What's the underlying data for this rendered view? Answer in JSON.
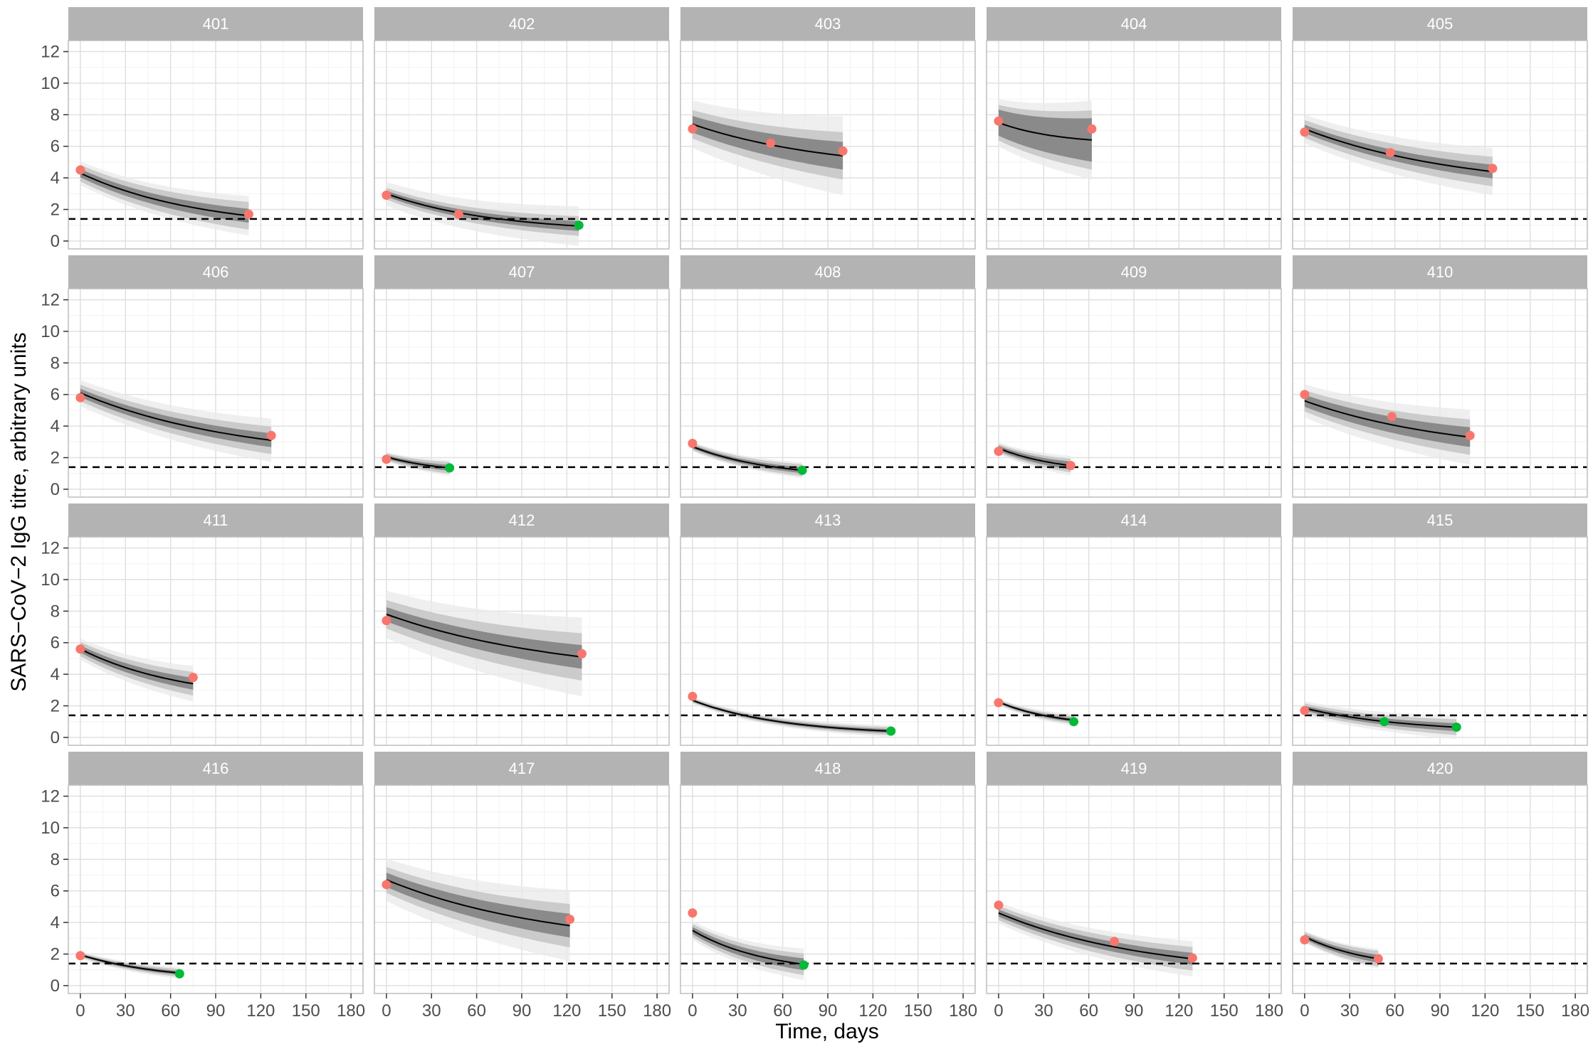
{
  "chart_data": {
    "type": "line",
    "facet_layout": "5 columns x 4 rows",
    "xlabel": "Time, days",
    "ylabel": "SARS−CoV−2 IgG titre, arbitrary units",
    "xlim": [
      -8,
      188
    ],
    "ylim": [
      -0.5,
      12.7
    ],
    "x_ticks": [
      "0",
      "30",
      "60",
      "90",
      "120",
      "150",
      "180"
    ],
    "y_ticks": [
      "0",
      "2",
      "4",
      "6",
      "8",
      "10",
      "12"
    ],
    "threshold_line": {
      "y": 1.4,
      "style": "dashed"
    },
    "grid": true,
    "colors": {
      "above_threshold_point": "#F8766D",
      "below_threshold_point": "#00BA38",
      "fit_line": "#000000",
      "band_inner": "#7f7f7f",
      "band_outer": "#c4c4c4",
      "band_outermost": "#e9e9e9",
      "strip": "#b3b3b3",
      "threshold": "#000000"
    },
    "panels": [
      {
        "label": "401",
        "points": [
          {
            "x": 0,
            "y": 4.5,
            "group": "above"
          },
          {
            "x": 112,
            "y": 1.7,
            "group": "above"
          }
        ],
        "fit": {
          "x0": 0,
          "x1": 112,
          "y0": 4.3,
          "y1": 1.6,
          "curve": 1.4
        },
        "bands": [
          0.35,
          0.7,
          1.0
        ]
      },
      {
        "label": "402",
        "points": [
          {
            "x": 0,
            "y": 2.9,
            "group": "above"
          },
          {
            "x": 48,
            "y": 1.7,
            "group": "above"
          },
          {
            "x": 128,
            "y": 1.0,
            "group": "below"
          }
        ],
        "fit": {
          "x0": 0,
          "x1": 128,
          "y0": 3.0,
          "y1": 0.95,
          "curve": 1.8
        },
        "bands": [
          0.25,
          0.5,
          1.0
        ]
      },
      {
        "label": "403",
        "points": [
          {
            "x": 0,
            "y": 7.1,
            "group": "above"
          },
          {
            "x": 52,
            "y": 6.2,
            "group": "above"
          },
          {
            "x": 100,
            "y": 5.7,
            "group": "above"
          }
        ],
        "fit": {
          "x0": 0,
          "x1": 100,
          "y0": 7.4,
          "y1": 5.4,
          "curve": 1.1
        },
        "bands": [
          0.7,
          1.2,
          2.0
        ]
      },
      {
        "label": "404",
        "points": [
          {
            "x": 0,
            "y": 7.6,
            "group": "above"
          },
          {
            "x": 62,
            "y": 7.1,
            "group": "above"
          }
        ],
        "fit": {
          "x0": 0,
          "x1": 62,
          "y0": 7.5,
          "y1": 6.4,
          "curve": 1.6
        },
        "bands": [
          1.1,
          1.5,
          2.0
        ]
      },
      {
        "label": "405",
        "points": [
          {
            "x": 0,
            "y": 6.9,
            "group": "above"
          },
          {
            "x": 57,
            "y": 5.6,
            "group": "above"
          },
          {
            "x": 125,
            "y": 4.6,
            "group": "above"
          }
        ],
        "fit": {
          "x0": 0,
          "x1": 125,
          "y0": 7.1,
          "y1": 4.4,
          "curve": 1.2
        },
        "bands": [
          0.35,
          0.75,
          1.2
        ]
      },
      {
        "label": "406",
        "points": [
          {
            "x": 0,
            "y": 5.8,
            "group": "above"
          },
          {
            "x": 127,
            "y": 3.4,
            "group": "above"
          }
        ],
        "fit": {
          "x0": 0,
          "x1": 127,
          "y0": 6.1,
          "y1": 3.1,
          "curve": 1.2
        },
        "bands": [
          0.35,
          0.7,
          1.1
        ]
      },
      {
        "label": "407",
        "points": [
          {
            "x": 0,
            "y": 1.9,
            "group": "above"
          },
          {
            "x": 42,
            "y": 1.35,
            "group": "below"
          }
        ],
        "fit": {
          "x0": 0,
          "x1": 42,
          "y0": 2.05,
          "y1": 1.35,
          "curve": 1.1
        },
        "bands": [
          0.15,
          0.3,
          0.4
        ]
      },
      {
        "label": "408",
        "points": [
          {
            "x": 0,
            "y": 2.9,
            "group": "above"
          },
          {
            "x": 73,
            "y": 1.2,
            "group": "below"
          }
        ],
        "fit": {
          "x0": 0,
          "x1": 73,
          "y0": 2.7,
          "y1": 1.2,
          "curve": 1.4
        },
        "bands": [
          0.15,
          0.3,
          0.4
        ]
      },
      {
        "label": "409",
        "points": [
          {
            "x": 0,
            "y": 2.4,
            "group": "above"
          },
          {
            "x": 48,
            "y": 1.5,
            "group": "above"
          }
        ],
        "fit": {
          "x0": 0,
          "x1": 48,
          "y0": 2.6,
          "y1": 1.5,
          "curve": 1.2
        },
        "bands": [
          0.2,
          0.35,
          0.5
        ]
      },
      {
        "label": "410",
        "points": [
          {
            "x": 0,
            "y": 6.0,
            "group": "above"
          },
          {
            "x": 58,
            "y": 4.6,
            "group": "above"
          },
          {
            "x": 110,
            "y": 3.4,
            "group": "above"
          }
        ],
        "fit": {
          "x0": 0,
          "x1": 110,
          "y0": 5.6,
          "y1": 3.3,
          "curve": 1.1
        },
        "bands": [
          0.5,
          0.9,
          1.4
        ]
      },
      {
        "label": "411",
        "points": [
          {
            "x": 0,
            "y": 5.6,
            "group": "above"
          },
          {
            "x": 75,
            "y": 3.8,
            "group": "above"
          }
        ],
        "fit": {
          "x0": 0,
          "x1": 75,
          "y0": 5.6,
          "y1": 3.4,
          "curve": 1.1
        },
        "bands": [
          0.3,
          0.6,
          0.9
        ]
      },
      {
        "label": "412",
        "points": [
          {
            "x": 0,
            "y": 7.4,
            "group": "above"
          },
          {
            "x": 130,
            "y": 5.3,
            "group": "above"
          }
        ],
        "fit": {
          "x0": 0,
          "x1": 130,
          "y0": 7.8,
          "y1": 5.1,
          "curve": 1.1
        },
        "bands": [
          0.6,
          1.2,
          2.0
        ]
      },
      {
        "label": "413",
        "points": [
          {
            "x": 0,
            "y": 2.6,
            "group": "above"
          },
          {
            "x": 132,
            "y": 0.4,
            "group": "below"
          }
        ],
        "fit": {
          "x0": 0,
          "x1": 132,
          "y0": 2.35,
          "y1": 0.4,
          "curve": 2.2
        },
        "bands": [
          0.1,
          0.2,
          0.3
        ]
      },
      {
        "label": "414",
        "points": [
          {
            "x": 0,
            "y": 2.2,
            "group": "above"
          },
          {
            "x": 50,
            "y": 1.0,
            "group": "below"
          }
        ],
        "fit": {
          "x0": 0,
          "x1": 50,
          "y0": 2.25,
          "y1": 1.1,
          "curve": 1.3
        },
        "bands": [
          0.1,
          0.2,
          0.3
        ]
      },
      {
        "label": "415",
        "points": [
          {
            "x": 0,
            "y": 1.7,
            "group": "above"
          },
          {
            "x": 53,
            "y": 1.0,
            "group": "below"
          },
          {
            "x": 101,
            "y": 0.65,
            "group": "below"
          }
        ],
        "fit": {
          "x0": 0,
          "x1": 101,
          "y0": 1.85,
          "y1": 0.65,
          "curve": 1.5
        },
        "bands": [
          0.2,
          0.4,
          0.6
        ]
      },
      {
        "label": "416",
        "points": [
          {
            "x": 0,
            "y": 1.9,
            "group": "above"
          },
          {
            "x": 66,
            "y": 0.75,
            "group": "below"
          }
        ],
        "fit": {
          "x0": 0,
          "x1": 66,
          "y0": 1.95,
          "y1": 0.8,
          "curve": 1.2
        },
        "bands": [
          0.1,
          0.2,
          0.3
        ]
      },
      {
        "label": "417",
        "points": [
          {
            "x": 0,
            "y": 6.4,
            "group": "above"
          },
          {
            "x": 122,
            "y": 4.2,
            "group": "above"
          }
        ],
        "fit": {
          "x0": 0,
          "x1": 122,
          "y0": 6.7,
          "y1": 3.8,
          "curve": 1.1
        },
        "bands": [
          0.6,
          1.1,
          1.8
        ]
      },
      {
        "label": "418",
        "points": [
          {
            "x": 0,
            "y": 4.6,
            "group": "above"
          },
          {
            "x": 74,
            "y": 1.3,
            "group": "below"
          }
        ],
        "fit": {
          "x0": 0,
          "x1": 74,
          "y0": 3.5,
          "y1": 1.35,
          "curve": 1.5
        },
        "bands": [
          0.3,
          0.55,
          0.8
        ]
      },
      {
        "label": "419",
        "points": [
          {
            "x": 0,
            "y": 5.1,
            "group": "above"
          },
          {
            "x": 77,
            "y": 2.8,
            "group": "above"
          },
          {
            "x": 129,
            "y": 1.75,
            "group": "above"
          }
        ],
        "fit": {
          "x0": 0,
          "x1": 129,
          "y0": 4.6,
          "y1": 1.7,
          "curve": 1.3
        },
        "bands": [
          0.3,
          0.6,
          0.9
        ]
      },
      {
        "label": "420",
        "points": [
          {
            "x": 0,
            "y": 2.9,
            "group": "above"
          },
          {
            "x": 49,
            "y": 1.7,
            "group": "above"
          }
        ],
        "fit": {
          "x0": 0,
          "x1": 49,
          "y0": 3.1,
          "y1": 1.7,
          "curve": 1.1
        },
        "bands": [
          0.2,
          0.4,
          0.5
        ]
      }
    ]
  }
}
